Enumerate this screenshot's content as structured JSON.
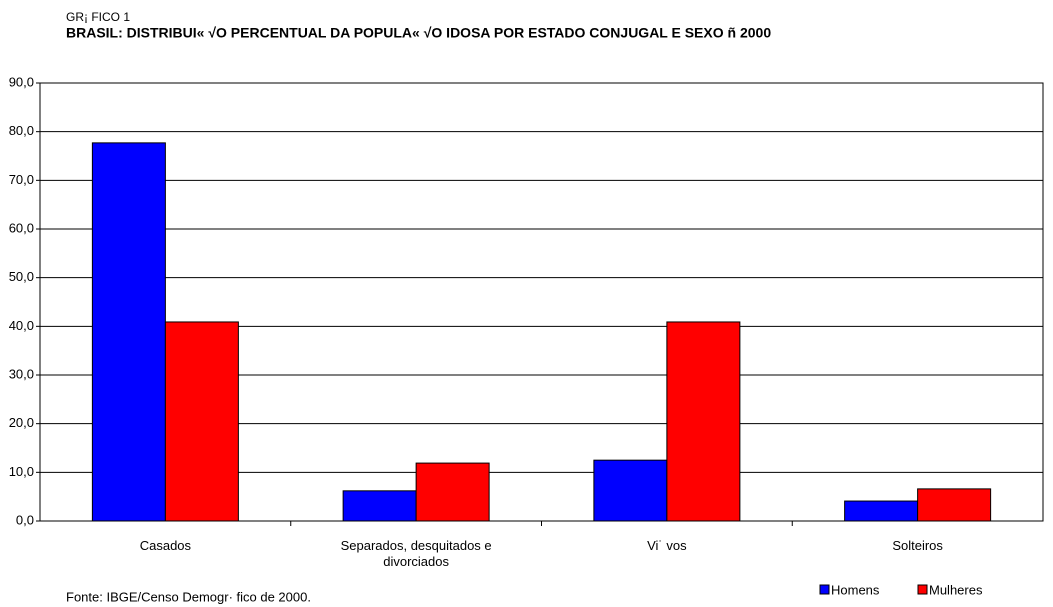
{
  "chart_data": {
    "type": "bar",
    "subtitle": "GR¡ FICO 1",
    "title": "BRASIL: DISTRIBUI« √O PERCENTUAL DA POPULA« √O IDOSA POR ESTADO CONJUGAL E SEXO ñ 2000",
    "source": "Fonte: IBGE/Censo Demogr· fico de 2000.",
    "categories": [
      "Casados",
      "Separados, desquitados e divorciados",
      "Vi˙ vos",
      "Solteiros"
    ],
    "series": [
      {
        "name": "Homens",
        "color": "#0000ff",
        "values": [
          77.7,
          6.2,
          12.5,
          4.1
        ]
      },
      {
        "name": "Mulheres",
        "color": "#ff0000",
        "values": [
          40.9,
          11.9,
          40.9,
          6.6
        ]
      }
    ],
    "ylim": [
      0,
      90
    ],
    "yticks": [
      {
        "value": 0,
        "label": "0,0"
      },
      {
        "value": 10,
        "label": "10,0"
      },
      {
        "value": 20,
        "label": "20,0"
      },
      {
        "value": 30,
        "label": "30,0"
      },
      {
        "value": 40,
        "label": "40,0"
      },
      {
        "value": 50,
        "label": "50,0"
      },
      {
        "value": 60,
        "label": "60,0"
      },
      {
        "value": 70,
        "label": "70,0"
      },
      {
        "value": 80,
        "label": "80,0"
      },
      {
        "value": 90,
        "label": "90,0"
      }
    ],
    "grid": true,
    "legend": "bottom-right"
  }
}
